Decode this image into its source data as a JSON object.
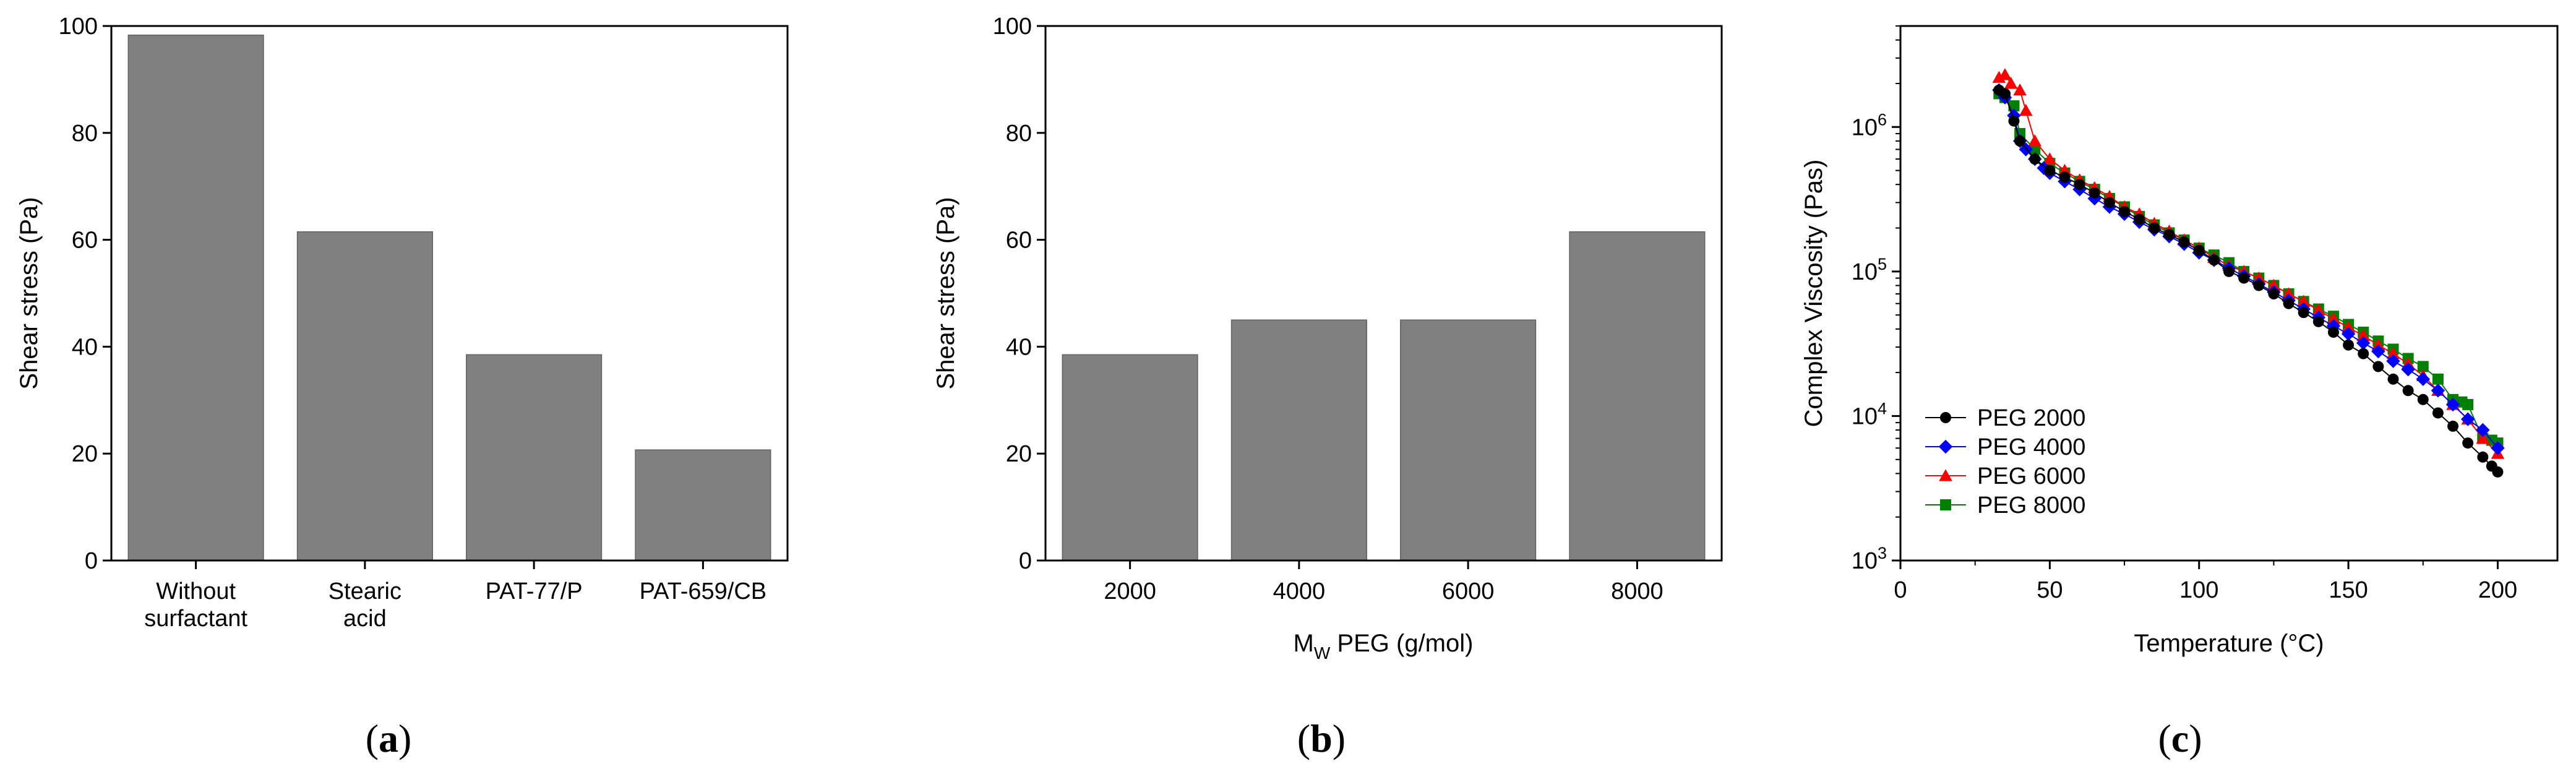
{
  "chart_data": [
    {
      "type": "bar",
      "panel": "a",
      "categories": [
        [
          "Without",
          "surfactant"
        ],
        [
          "Stearic",
          "acid"
        ],
        [
          "PAT-77/P"
        ],
        [
          "PAT-659/CB"
        ]
      ],
      "values": [
        98.3,
        61.5,
        38.5,
        20.7
      ],
      "xlabel": "",
      "ylabel": "Shear stress (Pa)",
      "ylim": [
        0,
        100
      ],
      "yticks": [
        0,
        20,
        40,
        60,
        80,
        100
      ],
      "bar_color": "#808080"
    },
    {
      "type": "bar",
      "panel": "b",
      "categories": [
        "2000",
        "4000",
        "6000",
        "8000"
      ],
      "values": [
        38.5,
        45.0,
        45.0,
        61.5
      ],
      "xlabel": {
        "m": "M",
        "sub": "W",
        "rest": " PEG (g/mol)"
      },
      "ylabel": "Shear stress (Pa)",
      "ylim": [
        0,
        100
      ],
      "yticks": [
        0,
        20,
        40,
        60,
        80,
        100
      ],
      "bar_color": "#808080"
    },
    {
      "type": "scatter",
      "panel": "c",
      "xlabel": "Temperature (°C)",
      "ylabel": "Complex Viscosity (Pas)",
      "xlim": [
        0,
        220
      ],
      "xticks": [
        0,
        50,
        100,
        150,
        200
      ],
      "ylim": [
        1000,
        5000000
      ],
      "yscale": "log",
      "yticks": [
        {
          "value": 1000,
          "base": "10",
          "exp": "3"
        },
        {
          "value": 10000,
          "base": "10",
          "exp": "4"
        },
        {
          "value": 100000,
          "base": "10",
          "exp": "5"
        },
        {
          "value": 1000000,
          "base": "10",
          "exp": "6"
        }
      ],
      "legend_position": "bottom-left",
      "series": [
        {
          "name": "PEG 2000",
          "color": "#000000",
          "marker": "circle",
          "x": [
            33,
            35,
            38,
            40,
            45,
            50,
            55,
            60,
            65,
            70,
            75,
            80,
            85,
            90,
            95,
            100,
            105,
            110,
            115,
            120,
            125,
            130,
            135,
            140,
            145,
            150,
            155,
            160,
            165,
            170,
            175,
            180,
            185,
            190,
            195,
            198,
            200
          ],
          "y": [
            1800000,
            1700000,
            1100000,
            800000,
            600000,
            500000,
            450000,
            400000,
            350000,
            300000,
            260000,
            230000,
            200000,
            180000,
            160000,
            140000,
            120000,
            100000,
            90000,
            80000,
            70000,
            60000,
            52000,
            45000,
            38000,
            31000,
            27000,
            22000,
            18000,
            15000,
            13000,
            10500,
            8500,
            6500,
            5200,
            4500,
            4100
          ]
        },
        {
          "name": "PEG 4000",
          "color": "#0000ff",
          "marker": "diamond",
          "x": [
            33,
            35,
            38,
            40,
            42,
            45,
            48,
            50,
            55,
            60,
            65,
            70,
            75,
            80,
            85,
            90,
            95,
            100,
            105,
            110,
            115,
            120,
            125,
            130,
            135,
            140,
            145,
            150,
            155,
            160,
            165,
            170,
            175,
            180,
            185,
            190,
            195,
            200
          ],
          "y": [
            1800000,
            1600000,
            1200000,
            800000,
            700000,
            600000,
            520000,
            480000,
            420000,
            370000,
            320000,
            280000,
            250000,
            220000,
            195000,
            175000,
            155000,
            135000,
            120000,
            105000,
            93000,
            82000,
            72000,
            63000,
            55000,
            48000,
            42000,
            37000,
            32000,
            28000,
            24000,
            21000,
            18000,
            15000,
            12000,
            9500,
            8000,
            6000
          ]
        },
        {
          "name": "PEG 6000",
          "color": "#ff0000",
          "marker": "triangle",
          "x": [
            33,
            35,
            37,
            40,
            42,
            45,
            50,
            55,
            60,
            65,
            70,
            75,
            80,
            85,
            90,
            95,
            100,
            105,
            110,
            115,
            120,
            125,
            130,
            135,
            140,
            145,
            150,
            155,
            160,
            165,
            170,
            175,
            180,
            185,
            190,
            195,
            200
          ],
          "y": [
            2200000,
            2300000,
            2000000,
            1800000,
            1300000,
            800000,
            600000,
            500000,
            430000,
            380000,
            330000,
            280000,
            250000,
            215000,
            190000,
            165000,
            145000,
            125000,
            110000,
            100000,
            90000,
            80000,
            70000,
            62000,
            54000,
            47000,
            41000,
            36000,
            31000,
            27000,
            23000,
            19000,
            15000,
            12000,
            9500,
            7000,
            5500
          ]
        },
        {
          "name": "PEG 8000",
          "color": "#008000",
          "marker": "square",
          "x": [
            33,
            35,
            38,
            40,
            45,
            50,
            55,
            60,
            65,
            70,
            75,
            80,
            85,
            90,
            95,
            100,
            105,
            110,
            115,
            120,
            125,
            130,
            135,
            140,
            145,
            150,
            155,
            160,
            165,
            170,
            175,
            180,
            185,
            188,
            190,
            195,
            198,
            200
          ],
          "y": [
            1700000,
            1600000,
            1400000,
            900000,
            700000,
            560000,
            480000,
            420000,
            370000,
            320000,
            280000,
            240000,
            210000,
            185000,
            165000,
            145000,
            130000,
            115000,
            100000,
            90000,
            80000,
            70000,
            62000,
            55000,
            49000,
            43000,
            38000,
            33000,
            29000,
            25000,
            22000,
            18000,
            13000,
            12500,
            12000,
            7000,
            6800,
            6500
          ]
        }
      ]
    }
  ],
  "panel_labels": [
    "a",
    "b",
    "c"
  ]
}
